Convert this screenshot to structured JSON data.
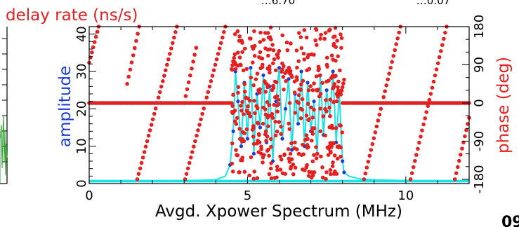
{
  "top_label": "delay rate (ns/s)",
  "clipped_top_values": [
    "…6.70",
    "…0.07"
  ],
  "clipped_corner_label": "09",
  "colors": {
    "amplitude_points": "#1a3dd6",
    "amplitude_line": "#19e3e6",
    "phase_points": "#e62020",
    "axis": "#000000",
    "left_panel_trace": "#2aa02a"
  },
  "chart_data": {
    "type": "scatter",
    "title": "",
    "xlabel": "Avgd. Xpower Spectrum (MHz)",
    "ylabel": "amplitude",
    "y2label": "phase (deg)",
    "xlim": [
      0,
      12
    ],
    "ylim": [
      0,
      42
    ],
    "y2lim": [
      -190,
      180
    ],
    "x_ticks": [
      "0",
      "5",
      "10"
    ],
    "y_ticks": [
      "0",
      "10",
      "20",
      "30",
      "40"
    ],
    "y2_ticks": [
      "-180",
      "-90",
      "0",
      "90",
      "180"
    ],
    "grid": false,
    "series": [
      {
        "name": "amplitude",
        "axis": "left",
        "style": "points joined by line",
        "points": [
          [
            0.0,
            0.5
          ],
          [
            1.0,
            0.6
          ],
          [
            2.0,
            0.7
          ],
          [
            3.0,
            0.8
          ],
          [
            4.0,
            1.0
          ],
          [
            4.3,
            2.0
          ],
          [
            4.45,
            5.0
          ],
          [
            4.55,
            14.0
          ],
          [
            4.62,
            30.0
          ],
          [
            4.7,
            22.0
          ],
          [
            4.8,
            10.0
          ],
          [
            4.9,
            27.0
          ],
          [
            5.0,
            12.0
          ],
          [
            5.1,
            31.0
          ],
          [
            5.2,
            8.0
          ],
          [
            5.3,
            24.0
          ],
          [
            5.4,
            15.0
          ],
          [
            5.5,
            29.0
          ],
          [
            5.6,
            11.0
          ],
          [
            5.7,
            26.0
          ],
          [
            5.8,
            6.0
          ],
          [
            5.9,
            22.0
          ],
          [
            6.0,
            31.0
          ],
          [
            6.1,
            12.0
          ],
          [
            6.2,
            20.0
          ],
          [
            6.3,
            28.0
          ],
          [
            6.4,
            9.0
          ],
          [
            6.5,
            24.0
          ],
          [
            6.6,
            16.0
          ],
          [
            6.7,
            30.0
          ],
          [
            6.8,
            10.0
          ],
          [
            6.9,
            27.0
          ],
          [
            7.0,
            14.0
          ],
          [
            7.1,
            22.0
          ],
          [
            7.2,
            8.0
          ],
          [
            7.3,
            29.0
          ],
          [
            7.4,
            13.0
          ],
          [
            7.5,
            25.0
          ],
          [
            7.6,
            18.0
          ],
          [
            7.7,
            30.0
          ],
          [
            7.8,
            11.0
          ],
          [
            7.9,
            24.0
          ],
          [
            8.0,
            6.0
          ],
          [
            8.05,
            3.0
          ],
          [
            8.2,
            2.0
          ],
          [
            8.5,
            1.3
          ],
          [
            9.0,
            1.0
          ],
          [
            10.0,
            0.8
          ],
          [
            11.0,
            0.7
          ],
          [
            12.0,
            0.6
          ]
        ]
      },
      {
        "name": "phase",
        "axis": "right",
        "style": "points",
        "flat_level": 0,
        "flat_ranges": [
          [
            0.0,
            4.5
          ],
          [
            8.0,
            12.0
          ]
        ],
        "wrap_segments": [
          {
            "x": [
              1.52,
              2.77
            ],
            "y": [
              -180,
              180
            ]
          },
          {
            "x": [
              3.03,
              4.3
            ],
            "y": [
              -180,
              180
            ]
          },
          {
            "x": [
              8.68,
              9.83
            ],
            "y": [
              -180,
              180
            ]
          },
          {
            "x": [
              10.15,
              11.29
            ],
            "y": [
              -180,
              180
            ]
          },
          {
            "x": [
              11.55,
              12.0
            ],
            "y": [
              -180,
              -35
            ]
          },
          {
            "x": [
              0.0,
              0.3
            ],
            "y": [
              95,
              180
            ]
          },
          {
            "x": [
              1.2,
              1.58
            ],
            "y": [
              45,
              180
            ]
          },
          {
            "x": [
              3.0,
              3.38
            ],
            "y": [
              0,
              130
            ]
          },
          {
            "x": [
              4.5,
              4.6
            ],
            "y": [
              80,
              115
            ]
          },
          {
            "x": [
              7.95,
              8.05
            ],
            "y": [
              20,
              55
            ]
          }
        ],
        "noisy_range": [
          4.5,
          8.0
        ]
      }
    ]
  }
}
